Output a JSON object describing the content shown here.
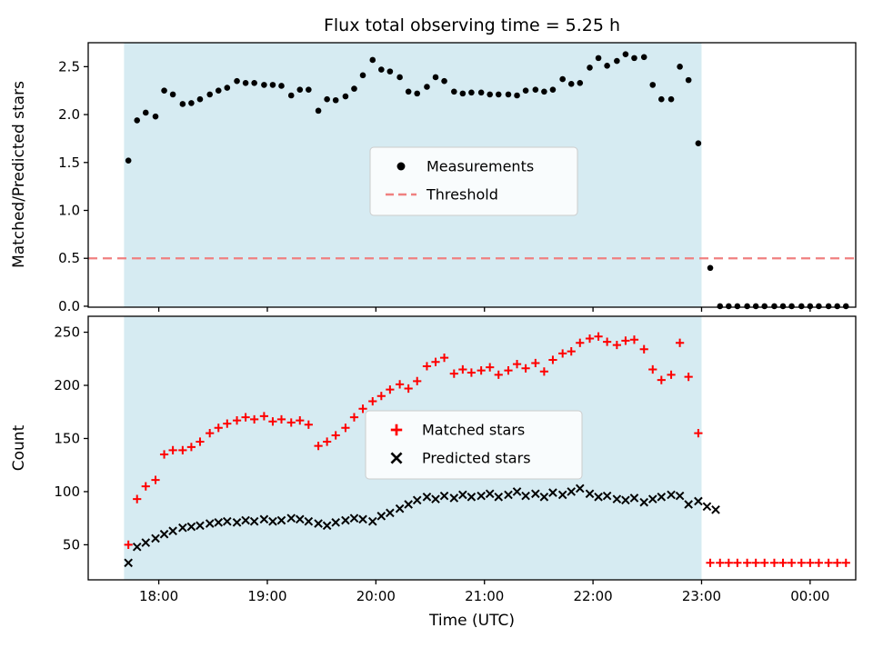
{
  "chart_data": {
    "type": "scatter",
    "title": "Flux total observing time = 5.25 h",
    "xlabel": "Time (UTC)",
    "xlim": [
      17.35,
      24.42
    ],
    "x_ticks": [
      18,
      19,
      20,
      21,
      22,
      23,
      24
    ],
    "x_tick_labels": [
      "18:00",
      "19:00",
      "20:00",
      "21:00",
      "22:00",
      "23:00",
      "00:00"
    ],
    "shaded_region": {
      "x0": 17.68,
      "x1": 23.0,
      "color": "#add8e6",
      "opacity": 0.5
    },
    "subplots": [
      {
        "ylabel": "Matched/Predicted stars",
        "ylim": [
          -0.01,
          2.75
        ],
        "y_ticks": [
          0.0,
          0.5,
          1.0,
          1.5,
          2.0,
          2.5
        ],
        "y_tick_labels": [
          "0.0",
          "0.5",
          "1.0",
          "1.5",
          "2.0",
          "2.5"
        ],
        "threshold": {
          "y": 0.5,
          "color": "#f08080",
          "label": "Threshold"
        },
        "legend": [
          {
            "label": "Measurements",
            "marker": "dot",
            "color": "#000000"
          },
          {
            "label": "Threshold",
            "marker": "dashed-line",
            "color": "#f08080"
          }
        ],
        "series": [
          {
            "name": "Measurements",
            "marker": "dot",
            "color": "#000000",
            "x": [
              17.72,
              17.8,
              17.88,
              17.97,
              18.05,
              18.13,
              18.22,
              18.3,
              18.38,
              18.47,
              18.55,
              18.63,
              18.72,
              18.8,
              18.88,
              18.97,
              19.05,
              19.13,
              19.22,
              19.3,
              19.38,
              19.47,
              19.55,
              19.63,
              19.72,
              19.8,
              19.88,
              19.97,
              20.05,
              20.13,
              20.22,
              20.3,
              20.38,
              20.47,
              20.55,
              20.63,
              20.72,
              20.8,
              20.88,
              20.97,
              21.05,
              21.13,
              21.22,
              21.3,
              21.38,
              21.47,
              21.55,
              21.63,
              21.72,
              21.8,
              21.88,
              21.97,
              22.05,
              22.13,
              22.22,
              22.3,
              22.38,
              22.47,
              22.55,
              22.63,
              22.72,
              22.8,
              22.88,
              22.97,
              23.08,
              23.17,
              23.25,
              23.33,
              23.42,
              23.5,
              23.58,
              23.67,
              23.75,
              23.83,
              23.92,
              24.0,
              24.08,
              24.17,
              24.25,
              24.33
            ],
            "y": [
              1.52,
              1.94,
              2.02,
              1.98,
              2.25,
              2.21,
              2.11,
              2.12,
              2.16,
              2.21,
              2.25,
              2.28,
              2.35,
              2.33,
              2.33,
              2.31,
              2.31,
              2.3,
              2.2,
              2.26,
              2.26,
              2.04,
              2.16,
              2.15,
              2.19,
              2.27,
              2.41,
              2.57,
              2.47,
              2.45,
              2.39,
              2.24,
              2.22,
              2.29,
              2.39,
              2.35,
              2.24,
              2.22,
              2.23,
              2.23,
              2.21,
              2.21,
              2.21,
              2.2,
              2.25,
              2.26,
              2.24,
              2.26,
              2.37,
              2.32,
              2.33,
              2.49,
              2.59,
              2.51,
              2.56,
              2.63,
              2.59,
              2.6,
              2.31,
              2.16,
              2.16,
              2.5,
              2.36,
              1.7,
              0.4,
              0,
              0,
              0,
              0,
              0,
              0,
              0,
              0,
              0,
              0,
              0,
              0,
              0,
              0,
              0
            ]
          }
        ]
      },
      {
        "ylabel": "Count",
        "ylim": [
          17,
          265
        ],
        "y_ticks": [
          50,
          100,
          150,
          200,
          250
        ],
        "y_tick_labels": [
          "50",
          "100",
          "150",
          "200",
          "250"
        ],
        "legend": [
          {
            "label": "Matched stars",
            "marker": "plus",
            "color": "#ff0000"
          },
          {
            "label": "Predicted stars",
            "marker": "x",
            "color": "#000000"
          }
        ],
        "series": [
          {
            "name": "Matched stars",
            "marker": "plus",
            "color": "#ff0000",
            "x": [
              17.72,
              17.8,
              17.88,
              17.97,
              18.05,
              18.13,
              18.22,
              18.3,
              18.38,
              18.47,
              18.55,
              18.63,
              18.72,
              18.8,
              18.88,
              18.97,
              19.05,
              19.13,
              19.22,
              19.3,
              19.38,
              19.47,
              19.55,
              19.63,
              19.72,
              19.8,
              19.88,
              19.97,
              20.05,
              20.13,
              20.22,
              20.3,
              20.38,
              20.47,
              20.55,
              20.63,
              20.72,
              20.8,
              20.88,
              20.97,
              21.05,
              21.13,
              21.22,
              21.3,
              21.38,
              21.47,
              21.55,
              21.63,
              21.72,
              21.8,
              21.88,
              21.97,
              22.05,
              22.13,
              22.22,
              22.3,
              22.38,
              22.47,
              22.55,
              22.63,
              22.72,
              22.8,
              22.88,
              22.97,
              23.08,
              23.17,
              23.25,
              23.33,
              23.42,
              23.5,
              23.58,
              23.67,
              23.75,
              23.83,
              23.92,
              24.0,
              24.08,
              24.17,
              24.25,
              24.33
            ],
            "y": [
              50,
              93,
              105,
              111,
              135,
              139,
              139,
              142,
              147,
              155,
              160,
              164,
              167,
              170,
              168,
              171,
              166,
              168,
              165,
              167,
              163,
              143,
              147,
              153,
              160,
              170,
              178,
              185,
              190,
              196,
              201,
              197,
              204,
              218,
              222,
              226,
              211,
              215,
              212,
              214,
              217,
              210,
              214,
              220,
              216,
              221,
              213,
              224,
              230,
              232,
              240,
              244,
              246,
              241,
              238,
              242,
              243,
              234,
              215,
              205,
              210,
              240,
              208,
              155,
              33,
              33,
              33,
              33,
              33,
              33,
              33,
              33,
              33,
              33,
              33,
              33,
              33,
              33,
              33,
              33
            ]
          },
          {
            "name": "Predicted stars",
            "marker": "x",
            "color": "#000000",
            "x": [
              17.72,
              17.8,
              17.88,
              17.97,
              18.05,
              18.13,
              18.22,
              18.3,
              18.38,
              18.47,
              18.55,
              18.63,
              18.72,
              18.8,
              18.88,
              18.97,
              19.05,
              19.13,
              19.22,
              19.3,
              19.38,
              19.47,
              19.55,
              19.63,
              19.72,
              19.8,
              19.88,
              19.97,
              20.05,
              20.13,
              20.22,
              20.3,
              20.38,
              20.47,
              20.55,
              20.63,
              20.72,
              20.8,
              20.88,
              20.97,
              21.05,
              21.13,
              21.22,
              21.3,
              21.38,
              21.47,
              21.55,
              21.63,
              21.72,
              21.8,
              21.88,
              21.97,
              22.05,
              22.13,
              22.22,
              22.3,
              22.38,
              22.47,
              22.55,
              22.63,
              22.72,
              22.8,
              22.88,
              22.97,
              23.05,
              23.13
            ],
            "y": [
              33,
              48,
              52,
              56,
              60,
              63,
              66,
              67,
              68,
              70,
              71,
              72,
              71,
              73,
              72,
              74,
              72,
              73,
              75,
              74,
              72,
              70,
              68,
              71,
              73,
              75,
              74,
              72,
              77,
              80,
              84,
              88,
              92,
              95,
              93,
              96,
              94,
              97,
              95,
              96,
              98,
              95,
              97,
              100,
              96,
              98,
              95,
              99,
              97,
              100,
              103,
              98,
              95,
              96,
              93,
              92,
              94,
              90,
              93,
              95,
              97,
              96,
              88,
              91,
              86,
              83
            ]
          }
        ]
      }
    ]
  }
}
